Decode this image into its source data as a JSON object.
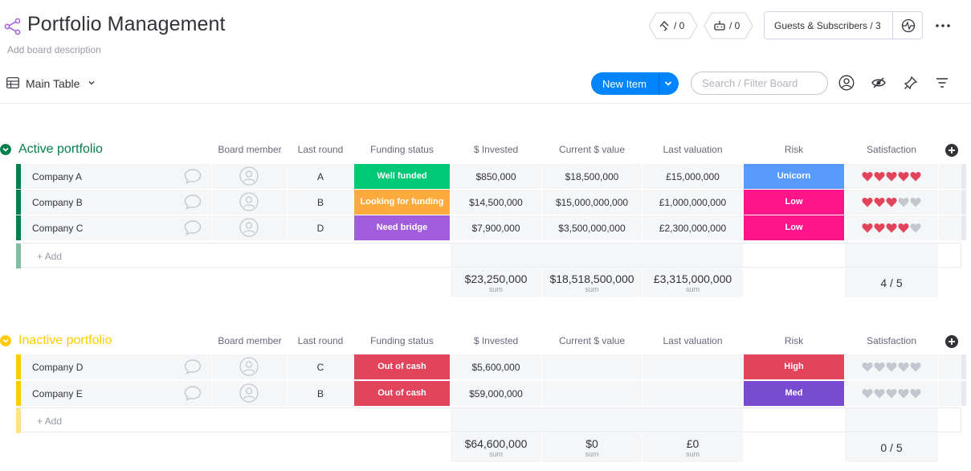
{
  "header": {
    "title": "Portfolio Management",
    "description": "Add board description",
    "activity_count": "/ 0",
    "integrations_count": "/ 0",
    "guests_label": "Guests & Subscribers / 3"
  },
  "toolbar": {
    "view_label": "Main Table",
    "new_item_label": "New Item",
    "search_placeholder": "Search / Filter Board"
  },
  "colors": {
    "active_group": "#037f4c",
    "inactive_group": "#ffcb00",
    "well_funded": "#00c875",
    "looking_for_funding": "#fdab3d",
    "need_bridge": "#a25ddc",
    "out_of_cash": "#e2445c",
    "unicorn": "#579bfc",
    "low": "#ff158a",
    "high": "#e2445c",
    "med": "#784bd1",
    "heart_on": "#e2445c",
    "heart_off": "#c5c7d0"
  },
  "columns": [
    "Board member",
    "Last round",
    "Funding status",
    "$ Invested",
    "Current $ value",
    "Last valuation",
    "Risk",
    "Satisfaction"
  ],
  "groups": [
    {
      "title": "Active portfolio",
      "rows": [
        {
          "name": "Company A",
          "last_round": "A",
          "funding_status": "Well funded",
          "invested": "$850,000",
          "current_value": "$18,500,000",
          "last_valuation": "£15,000,000",
          "risk": "Unicorn",
          "satisfaction": 5
        },
        {
          "name": "Company B",
          "last_round": "B",
          "funding_status": "Looking for funding",
          "invested": "$14,500,000",
          "current_value": "$15,000,000,000",
          "last_valuation": "£1,000,000,000",
          "risk": "Low",
          "satisfaction": 3
        },
        {
          "name": "Company C",
          "last_round": "D",
          "funding_status": "Need bridge",
          "invested": "$7,900,000",
          "current_value": "$3,500,000,000",
          "last_valuation": "£2,300,000,000",
          "risk": "Low",
          "satisfaction": 4
        }
      ],
      "add_label": "+ Add",
      "sums": {
        "invested": "$23,250,000",
        "current_value": "$18,518,500,000",
        "last_valuation": "£3,315,000,000",
        "satisfaction": "4 / 5",
        "sum_label": "sum"
      }
    },
    {
      "title": "Inactive portfolio",
      "rows": [
        {
          "name": "Company D",
          "last_round": "C",
          "funding_status": "Out of cash",
          "invested": "$5,600,000",
          "current_value": "",
          "last_valuation": "",
          "risk": "High",
          "satisfaction": 0
        },
        {
          "name": "Company E",
          "last_round": "B",
          "funding_status": "Out of cash",
          "invested": "$59,000,000",
          "current_value": "",
          "last_valuation": "",
          "risk": "Med",
          "satisfaction": 0
        }
      ],
      "add_label": "+ Add",
      "sums": {
        "invested": "$64,600,000",
        "current_value": "$0",
        "last_valuation": "£0",
        "satisfaction": "0 / 5",
        "sum_label": "sum"
      }
    }
  ]
}
